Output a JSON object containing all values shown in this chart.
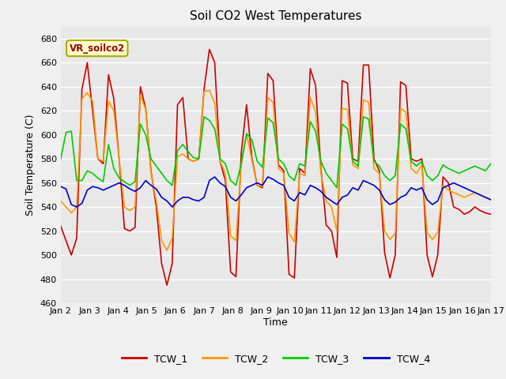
{
  "title": "Soil CO2 West Temperatures",
  "xlabel": "Time",
  "ylabel": "Soil Temperature (C)",
  "ylim": [
    460,
    690
  ],
  "yticks": [
    460,
    480,
    500,
    520,
    540,
    560,
    580,
    600,
    620,
    640,
    660,
    680
  ],
  "x_labels": [
    "Jan 2",
    "Jan 3",
    "Jan 4",
    "Jan 5",
    "Jan 6",
    "Jan 7",
    "Jan 8",
    "Jan 9",
    "Jan 10",
    "Jan 11",
    "Jan 12",
    "Jan 13",
    "Jan 14",
    "Jan 15",
    "Jan 16",
    "Jan 17"
  ],
  "series_colors": {
    "TCW_1": "#cc0000",
    "TCW_2": "#ff9900",
    "TCW_3": "#00cc00",
    "TCW_4": "#0000cc"
  },
  "legend_label": "VR_soilco2",
  "bg_color": "#e8e8e8",
  "grid_color": "#ffffff",
  "line_width": 1.2,
  "TCW_1": [
    524,
    512,
    500,
    514,
    638,
    660,
    620,
    580,
    576,
    650,
    630,
    580,
    522,
    520,
    523,
    640,
    622,
    570,
    540,
    493,
    475,
    493,
    625,
    631,
    580,
    578,
    580,
    638,
    671,
    660,
    578,
    562,
    486,
    482,
    585,
    625,
    581,
    558,
    556,
    651,
    645,
    575,
    570,
    484,
    481,
    572,
    568,
    655,
    641,
    572,
    525,
    520,
    498,
    645,
    643,
    580,
    578,
    658,
    658,
    580,
    570,
    502,
    481,
    500,
    644,
    641,
    580,
    578,
    580,
    500,
    482,
    500,
    565,
    560,
    540,
    538,
    534,
    536,
    540,
    537,
    535,
    534
  ],
  "TCW_2": [
    545,
    540,
    535,
    540,
    630,
    635,
    628,
    580,
    578,
    628,
    620,
    580,
    540,
    537,
    540,
    633,
    621,
    568,
    545,
    512,
    504,
    514,
    582,
    584,
    580,
    578,
    580,
    636,
    637,
    626,
    578,
    568,
    516,
    512,
    575,
    601,
    579,
    558,
    557,
    631,
    627,
    572,
    568,
    518,
    511,
    568,
    566,
    631,
    619,
    568,
    545,
    540,
    520,
    622,
    621,
    575,
    572,
    629,
    627,
    572,
    568,
    520,
    513,
    518,
    622,
    619,
    572,
    568,
    575,
    519,
    513,
    519,
    558,
    554,
    552,
    550,
    548,
    550,
    552,
    550,
    548,
    546
  ],
  "TCW_3": [
    580,
    602,
    603,
    562,
    562,
    570,
    568,
    564,
    561,
    592,
    572,
    564,
    561,
    558,
    561,
    609,
    600,
    580,
    574,
    568,
    562,
    558,
    587,
    592,
    586,
    581,
    580,
    615,
    612,
    605,
    580,
    576,
    562,
    558,
    576,
    601,
    596,
    578,
    573,
    614,
    610,
    580,
    576,
    566,
    562,
    576,
    574,
    611,
    603,
    578,
    568,
    562,
    556,
    609,
    605,
    578,
    574,
    615,
    613,
    578,
    574,
    566,
    562,
    566,
    609,
    605,
    578,
    574,
    578,
    566,
    562,
    566,
    575,
    572,
    570,
    568,
    570,
    572,
    574,
    572,
    570,
    576
  ],
  "TCW_4": [
    557,
    555,
    542,
    540,
    543,
    554,
    557,
    556,
    554,
    556,
    558,
    560,
    558,
    555,
    553,
    556,
    562,
    558,
    555,
    548,
    545,
    540,
    545,
    548,
    548,
    546,
    545,
    548,
    562,
    565,
    560,
    557,
    548,
    545,
    550,
    556,
    558,
    560,
    558,
    565,
    563,
    560,
    558,
    548,
    545,
    552,
    550,
    558,
    556,
    553,
    548,
    545,
    542,
    548,
    550,
    556,
    554,
    562,
    560,
    558,
    554,
    546,
    542,
    544,
    548,
    550,
    556,
    554,
    556,
    546,
    542,
    545,
    556,
    558,
    560,
    558,
    556,
    554,
    552,
    550,
    548,
    546
  ]
}
